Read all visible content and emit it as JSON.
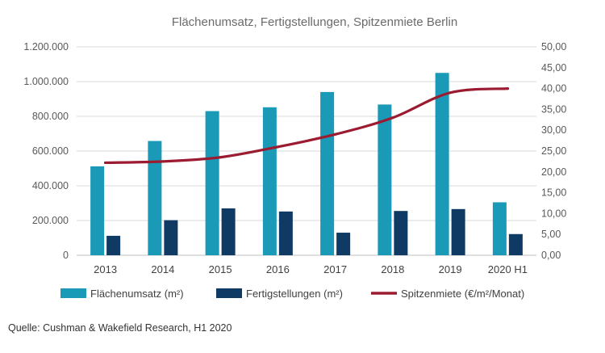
{
  "chart_data": {
    "type": "bar",
    "title": "Flächenumsatz, Fertigstellungen, Spitzenmiete Berlin",
    "categories": [
      "2013",
      "2014",
      "2015",
      "2016",
      "2017",
      "2018",
      "2019",
      "2020 H1"
    ],
    "series": [
      {
        "name": "Flächenumsatz (m²)",
        "type": "bar",
        "axis": "left",
        "color": "#1a9ab7",
        "values": [
          512000,
          658000,
          830000,
          852000,
          940000,
          868000,
          1050000,
          305000
        ]
      },
      {
        "name": "Fertigstellungen (m²)",
        "type": "bar",
        "axis": "left",
        "color": "#0f3a63",
        "values": [
          112000,
          202000,
          270000,
          252000,
          130000,
          255000,
          266000,
          122000
        ]
      },
      {
        "name": "Spitzenmiete (€/m²/Monat)",
        "type": "line",
        "axis": "right",
        "color": "#9b1b30",
        "values": [
          22.2,
          22.5,
          23.5,
          26.0,
          29.0,
          33.0,
          39.0,
          40.0
        ]
      }
    ],
    "y_left": {
      "min": 0,
      "max": 1200000,
      "ticks": [
        "0",
        "200.000",
        "400.000",
        "600.000",
        "800.000",
        "1.000.000",
        "1.200.000"
      ]
    },
    "y_right": {
      "min": 0,
      "max": 50,
      "ticks": [
        "0,00",
        "5,00",
        "10,00",
        "15,00",
        "20,00",
        "25,00",
        "30,00",
        "35,00",
        "40,00",
        "45,00",
        "50,00"
      ]
    },
    "grid": true,
    "legend_position": "bottom"
  },
  "source": "Quelle: Cushman & Wakefield Research, H1 2020"
}
